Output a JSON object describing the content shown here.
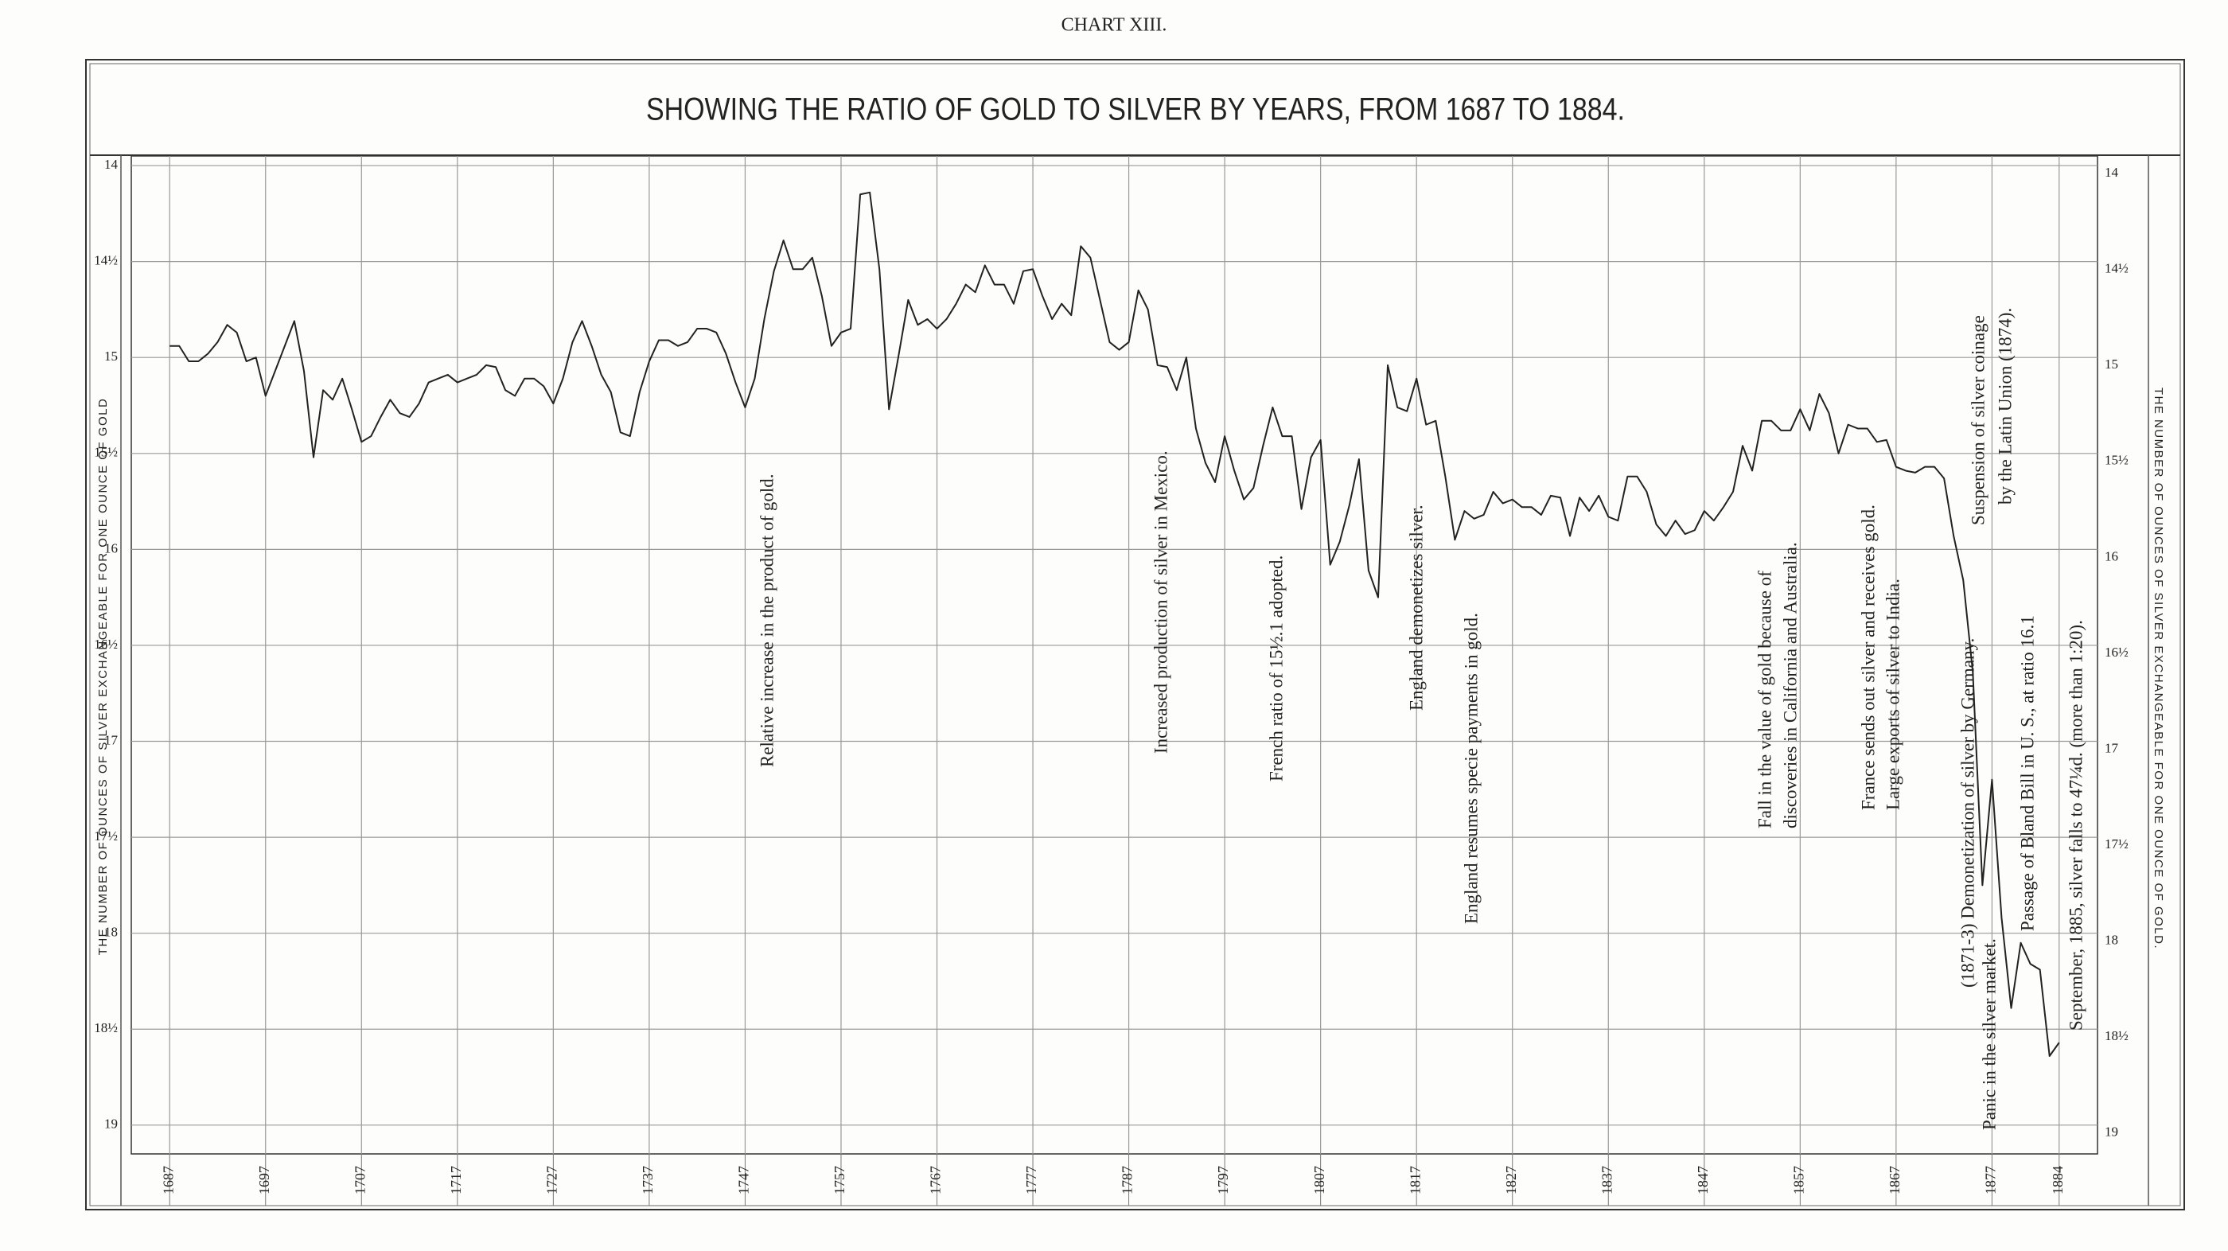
{
  "chart_data": {
    "type": "line",
    "header": "CHART XIII.",
    "title": "SHOWING THE RATIO OF GOLD TO SILVER BY YEARS, FROM 1687 TO 1884.",
    "y_label_left": "THE NUMBER OF OUNCES OF SILVER EXCHANGEABLE FOR ONE OUNCE OF GOLD",
    "y_label_right": "THE NUMBER OF OUNCES OF SILVER EXCHANGEABLE FOR ONE OUNCE OF GOLD.",
    "color": "#222222",
    "grid": true,
    "y_inverted": true,
    "xlim": [
      1683,
      1888
    ],
    "ylim": [
      13.95,
      19.15
    ],
    "xticks": [
      1687,
      1697,
      1707,
      1717,
      1727,
      1737,
      1747,
      1757,
      1767,
      1777,
      1787,
      1797,
      1807,
      1817,
      1827,
      1837,
      1847,
      1857,
      1867,
      1877,
      1884
    ],
    "yticks": [
      14,
      {
        "value": 14.5,
        "label": "14½"
      },
      15,
      {
        "value": 15.5,
        "label": "15½"
      },
      16,
      {
        "value": 16.5,
        "label": "16½"
      },
      17,
      {
        "value": 17.5,
        "label": "17½"
      },
      18,
      {
        "value": 18.5,
        "label": "18½"
      },
      19
    ],
    "x": [
      1687,
      1688,
      1689,
      1690,
      1691,
      1692,
      1693,
      1694,
      1695,
      1696,
      1697,
      1698,
      1699,
      1700,
      1701,
      1702,
      1703,
      1704,
      1705,
      1706,
      1707,
      1708,
      1709,
      1710,
      1711,
      1712,
      1713,
      1714,
      1715,
      1716,
      1717,
      1718,
      1719,
      1720,
      1721,
      1722,
      1723,
      1724,
      1725,
      1726,
      1727,
      1728,
      1729,
      1730,
      1731,
      1732,
      1733,
      1734,
      1735,
      1736,
      1737,
      1738,
      1739,
      1740,
      1741,
      1742,
      1743,
      1744,
      1745,
      1746,
      1747,
      1748,
      1749,
      1750,
      1751,
      1752,
      1753,
      1754,
      1755,
      1756,
      1757,
      1758,
      1759,
      1760,
      1761,
      1762,
      1763,
      1764,
      1765,
      1766,
      1767,
      1768,
      1769,
      1770,
      1771,
      1772,
      1773,
      1774,
      1775,
      1776,
      1777,
      1778,
      1779,
      1780,
      1781,
      1782,
      1783,
      1784,
      1785,
      1786,
      1787,
      1788,
      1789,
      1790,
      1791,
      1792,
      1793,
      1794,
      1795,
      1796,
      1797,
      1798,
      1799,
      1800,
      1801,
      1802,
      1803,
      1804,
      1805,
      1806,
      1807,
      1808,
      1809,
      1810,
      1811,
      1812,
      1813,
      1814,
      1815,
      1816,
      1817,
      1818,
      1819,
      1820,
      1821,
      1822,
      1823,
      1824,
      1825,
      1826,
      1827,
      1828,
      1829,
      1830,
      1831,
      1832,
      1833,
      1834,
      1835,
      1836,
      1837,
      1838,
      1839,
      1840,
      1841,
      1842,
      1843,
      1844,
      1845,
      1846,
      1847,
      1848,
      1849,
      1850,
      1851,
      1852,
      1853,
      1854,
      1855,
      1856,
      1857,
      1858,
      1859,
      1860,
      1861,
      1862,
      1863,
      1864,
      1865,
      1866,
      1867,
      1868,
      1869,
      1870,
      1871,
      1872,
      1873,
      1874,
      1875,
      1876,
      1877,
      1878,
      1879,
      1880,
      1881,
      1882,
      1883,
      1884
    ],
    "values": [
      14.94,
      14.94,
      15.02,
      15.02,
      14.98,
      14.92,
      14.83,
      14.87,
      15.02,
      15.0,
      15.2,
      15.07,
      14.94,
      14.81,
      15.07,
      15.52,
      15.17,
      15.22,
      15.11,
      15.27,
      15.44,
      15.41,
      15.31,
      15.22,
      15.29,
      15.31,
      15.24,
      15.13,
      15.11,
      15.09,
      15.13,
      15.11,
      15.09,
      15.04,
      15.05,
      15.17,
      15.2,
      15.11,
      15.11,
      15.15,
      15.24,
      15.11,
      14.92,
      14.81,
      14.94,
      15.09,
      15.18,
      15.39,
      15.41,
      15.18,
      15.02,
      14.91,
      14.91,
      14.94,
      14.92,
      14.85,
      14.85,
      14.87,
      14.98,
      15.13,
      15.26,
      15.11,
      14.8,
      14.55,
      14.39,
      14.54,
      14.54,
      14.48,
      14.68,
      14.94,
      14.87,
      14.85,
      14.15,
      14.14,
      14.54,
      15.27,
      14.99,
      14.7,
      14.83,
      14.8,
      14.85,
      14.8,
      14.72,
      14.62,
      14.66,
      14.52,
      14.62,
      14.62,
      14.72,
      14.55,
      14.54,
      14.68,
      14.8,
      14.72,
      14.78,
      14.42,
      14.48,
      14.7,
      14.92,
      14.96,
      14.92,
      14.65,
      14.75,
      15.04,
      15.05,
      15.17,
      15.0,
      15.37,
      15.55,
      15.65,
      15.41,
      15.59,
      15.74,
      15.68,
      15.46,
      15.26,
      15.41,
      15.41,
      15.79,
      15.52,
      15.43,
      16.08,
      15.96,
      15.77,
      15.53,
      16.11,
      16.25,
      15.04,
      15.26,
      15.28,
      15.11,
      15.35,
      15.33,
      15.62,
      15.95,
      15.8,
      15.84,
      15.82,
      15.7,
      15.76,
      15.74,
      15.78,
      15.78,
      15.82,
      15.72,
      15.73,
      15.93,
      15.73,
      15.8,
      15.72,
      15.83,
      15.85,
      15.62,
      15.62,
      15.7,
      15.87,
      15.93,
      15.85,
      15.92,
      15.9,
      15.8,
      15.85,
      15.78,
      15.7,
      15.46,
      15.59,
      15.33,
      15.33,
      15.38,
      15.38,
      15.27,
      15.38,
      15.19,
      15.29,
      15.5,
      15.35,
      15.37,
      15.37,
      15.44,
      15.43,
      15.57,
      15.59,
      15.6,
      15.57,
      15.57,
      15.63,
      15.93,
      16.16,
      16.64,
      17.75,
      17.2,
      17.92,
      18.39,
      18.05,
      18.16,
      18.19,
      18.64,
      18.57
    ],
    "annotations": [
      [
        "Relative increase in the product of gold."
      ],
      [
        "Increased production of silver in Mexico."
      ],
      [
        "French ratio of 15½.1 adopted."
      ],
      [
        "England demonetizes silver."
      ],
      [
        "England resumes specie payments in gold."
      ],
      [
        "Fall in the value of gold because of",
        "discoveries in California and Australia."
      ],
      [
        "France sends out silver and receives gold.",
        "Large exports of silver to India."
      ],
      [
        "Suspension of silver coinage",
        "by the Latin Union (1874)."
      ],
      [
        "(1871-3) Demonetization of silver by Germany.",
        "Panic in the silver market."
      ],
      [
        "Passage of Bland Bill in U. S., at ratio 16.1"
      ],
      [
        "September, 1885, silver falls to 47¼d. (more than 1:20)."
      ]
    ]
  }
}
